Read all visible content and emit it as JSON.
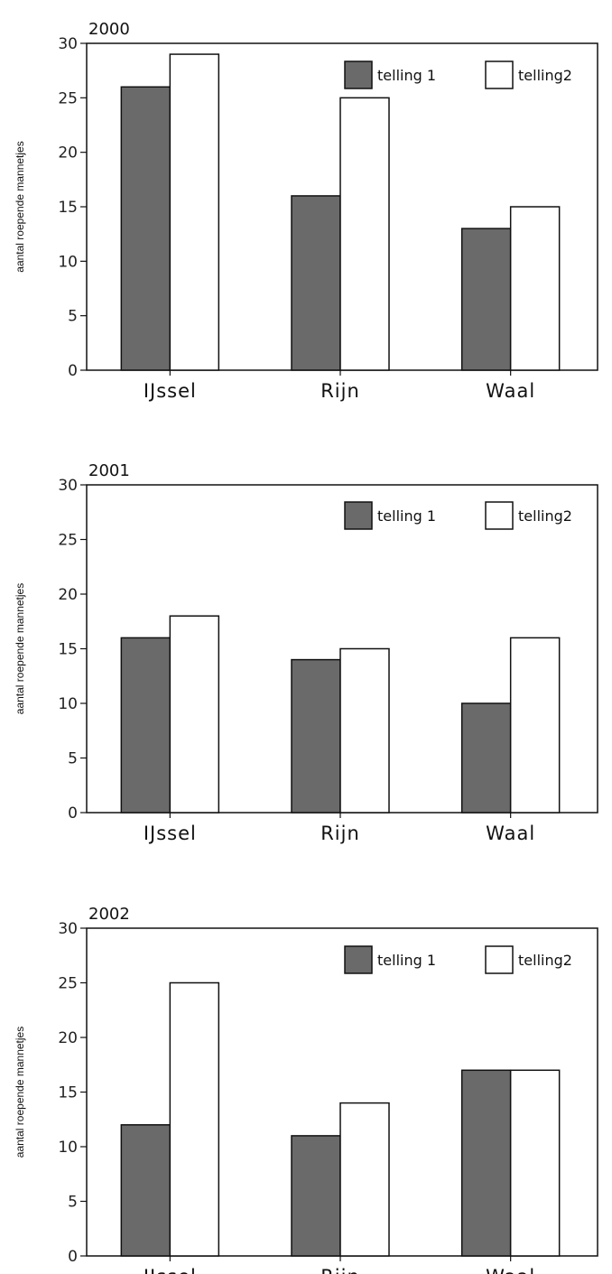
{
  "colors": {
    "telling1": "#6a6a6a",
    "telling2": "#ffffff",
    "axis": "#111111",
    "grid": "#cfcfcf"
  },
  "chart_data": [
    {
      "type": "bar",
      "title": "2000",
      "ylabel": "aantal roepende mannetjes",
      "xlabel": "",
      "categories": [
        "IJssel",
        "Rijn",
        "Waal"
      ],
      "ylim": [
        0,
        30
      ],
      "yticks": [
        0,
        5,
        10,
        15,
        20,
        25,
        30
      ],
      "legend_position": "top-right",
      "series": [
        {
          "name": "telling 1",
          "values": [
            26,
            16,
            13
          ]
        },
        {
          "name": "telling2",
          "values": [
            29,
            25,
            15
          ]
        }
      ]
    },
    {
      "type": "bar",
      "title": "2001",
      "ylabel": "aantal roepende mannetjes",
      "xlabel": "",
      "categories": [
        "IJssel",
        "Rijn",
        "Waal"
      ],
      "ylim": [
        0,
        30
      ],
      "yticks": [
        0,
        5,
        10,
        15,
        20,
        25,
        30
      ],
      "legend_position": "top-right",
      "series": [
        {
          "name": "telling 1",
          "values": [
            16,
            14,
            10
          ]
        },
        {
          "name": "telling2",
          "values": [
            18,
            15,
            16
          ]
        }
      ]
    },
    {
      "type": "bar",
      "title": "2002",
      "ylabel": "aantal roepende mannetjes",
      "xlabel": "",
      "categories": [
        "IJssel",
        "Rijn",
        "Waal"
      ],
      "ylim": [
        0,
        30
      ],
      "yticks": [
        0,
        5,
        10,
        15,
        20,
        25,
        30
      ],
      "legend_position": "top-right",
      "series": [
        {
          "name": "telling 1",
          "values": [
            12,
            11,
            17
          ]
        },
        {
          "name": "telling2",
          "values": [
            25,
            14,
            17
          ]
        }
      ]
    }
  ]
}
